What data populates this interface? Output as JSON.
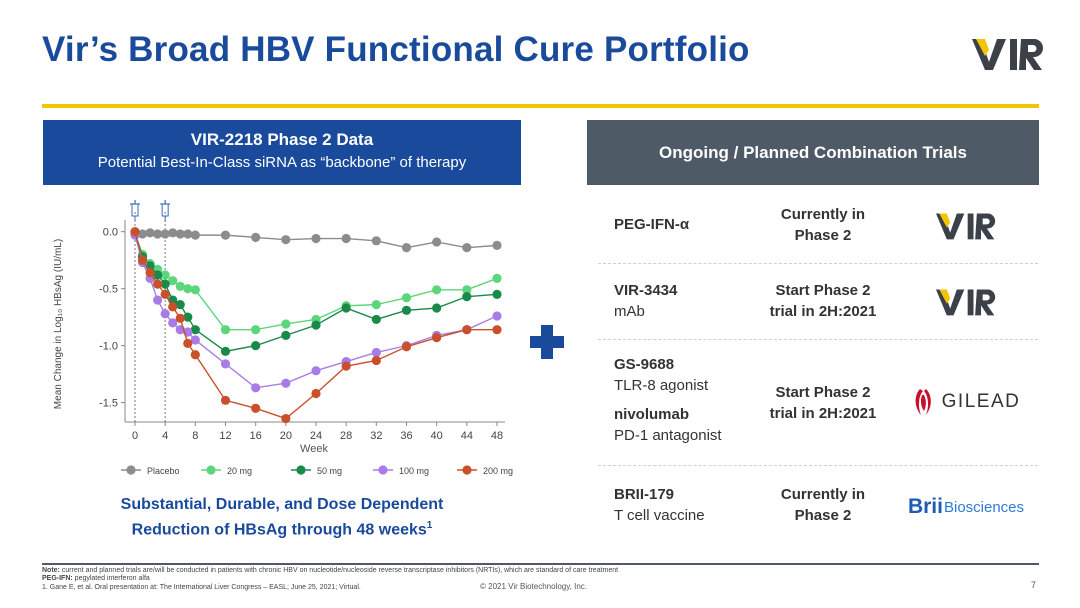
{
  "title": "Vir’s Broad HBV Functional Cure Portfolio",
  "logo": {
    "text": "VIR",
    "accent": "#f2c500",
    "color": "#3b4049"
  },
  "left_panel": {
    "heading": "VIR-2218 Phase 2 Data",
    "subheading": "Potential Best-In-Class siRNA as “backbone” of therapy"
  },
  "chart_data": {
    "type": "line",
    "title": "",
    "xlabel": "Week",
    "ylabel": "Mean Change in Log₁₀ HBsAg (IU/mL)",
    "ylim": [
      -1.6,
      0.05
    ],
    "y_ticks": [
      0.0,
      -0.5,
      -1.0,
      -1.5
    ],
    "y_tick_labels": [
      "0.0",
      "-0.5",
      "-1.0",
      "-1.5"
    ],
    "x_ticks": [
      0,
      4,
      8,
      12,
      16,
      20,
      24,
      28,
      32,
      36,
      40,
      44,
      48
    ],
    "dose_markers_weeks": [
      0,
      4
    ],
    "legend_position": "bottom",
    "series": [
      {
        "name": "Placebo",
        "color": "#8c8c8c",
        "x": [
          0,
          1,
          2,
          3,
          4,
          5,
          6,
          7,
          8,
          12,
          16,
          20,
          24,
          28,
          32,
          36,
          40,
          44,
          48
        ],
        "y": [
          0.0,
          -0.02,
          -0.01,
          -0.02,
          -0.02,
          -0.01,
          -0.02,
          -0.02,
          -0.03,
          -0.03,
          -0.05,
          -0.07,
          -0.06,
          -0.06,
          -0.08,
          -0.14,
          -0.09,
          -0.14,
          -0.12
        ]
      },
      {
        "name": "20 mg",
        "color": "#5cd67a",
        "x": [
          0,
          1,
          2,
          3,
          4,
          5,
          6,
          7,
          8,
          12,
          16,
          20,
          24,
          28,
          32,
          36,
          40,
          44,
          48
        ],
        "y": [
          -0.01,
          -0.2,
          -0.28,
          -0.33,
          -0.38,
          -0.43,
          -0.48,
          -0.5,
          -0.51,
          -0.86,
          -0.86,
          -0.81,
          -0.77,
          -0.65,
          -0.64,
          -0.58,
          -0.51,
          -0.51,
          -0.41
        ]
      },
      {
        "name": "50 mg",
        "color": "#1a8a4a",
        "x": [
          0,
          1,
          2,
          3,
          4,
          5,
          6,
          7,
          8,
          12,
          16,
          20,
          24,
          28,
          32,
          36,
          40,
          44,
          48
        ],
        "y": [
          -0.02,
          -0.22,
          -0.3,
          -0.38,
          -0.46,
          -0.6,
          -0.64,
          -0.75,
          -0.86,
          -1.05,
          -1.0,
          -0.91,
          -0.82,
          -0.67,
          -0.77,
          -0.69,
          -0.67,
          -0.57,
          -0.55
        ]
      },
      {
        "name": "100 mg",
        "color": "#a77ce6",
        "x": [
          0,
          1,
          2,
          3,
          4,
          5,
          6,
          7,
          8,
          12,
          16,
          20,
          24,
          28,
          32,
          36,
          40,
          44,
          48
        ],
        "y": [
          -0.03,
          -0.27,
          -0.41,
          -0.6,
          -0.72,
          -0.8,
          -0.86,
          -0.88,
          -0.95,
          -1.16,
          -1.37,
          -1.33,
          -1.22,
          -1.14,
          -1.06,
          -1.0,
          -0.91,
          -0.86,
          -0.74
        ]
      },
      {
        "name": "200 mg",
        "color": "#c9502a",
        "x": [
          0,
          1,
          2,
          3,
          4,
          5,
          6,
          7,
          8,
          12,
          16,
          20,
          24,
          28,
          32,
          36,
          40,
          44,
          48
        ],
        "y": [
          0.0,
          -0.25,
          -0.36,
          -0.46,
          -0.55,
          -0.66,
          -0.76,
          -0.98,
          -1.08,
          -1.48,
          -1.55,
          -1.64,
          -1.42,
          -1.18,
          -1.13,
          -1.01,
          -0.93,
          -0.86,
          -0.86
        ]
      }
    ]
  },
  "caption": {
    "line1": "Substantial, Durable, and Dose Dependent",
    "line2": "Reduction of HBsAg through 48 weeks",
    "sup": "1"
  },
  "right_panel": {
    "heading": "Ongoing / Planned Combination Trials",
    "trials": [
      {
        "name": "PEG-IFN-α",
        "status_l1": "Currently in",
        "status_l2": "Phase 2",
        "partner": "VIR"
      },
      {
        "name": "VIR-3434",
        "desc": "mAb",
        "status_l1": "Start Phase 2",
        "status_l2": "trial in 2H:2021",
        "partner": "VIR"
      },
      {
        "name": "GS-9688",
        "desc": "TLR-8 agonist",
        "name2": "nivolumab",
        "desc2": "PD-1 antagonist",
        "status_l1": "Start Phase 2",
        "status_l2": "trial in 2H:2021",
        "partner": "GILEAD"
      },
      {
        "name": "BRII-179",
        "desc": "T cell vaccine",
        "status_l1": "Currently in",
        "status_l2": "Phase 2",
        "partner_a": "Brii",
        "partner_b": "Biosciences"
      }
    ]
  },
  "footnotes": {
    "note_label": "Note:",
    "note_text": " current and planned trials are/will be conducted in patients with chronic HBV on nucleotide/nucleoside reverse transcriptase inhibitors (NRTIs), which are standard of care treatment",
    "peg_label": "PEG-IFN:",
    "peg_text": " pegylated interferon alfa",
    "ref": "1. Gane E, et al. Oral presentation at: The International Liver Congress – EASL; June 25, 2021; Virtual."
  },
  "copyright": "© 2021 Vir Biotechnology, Inc.",
  "page_number": "7"
}
